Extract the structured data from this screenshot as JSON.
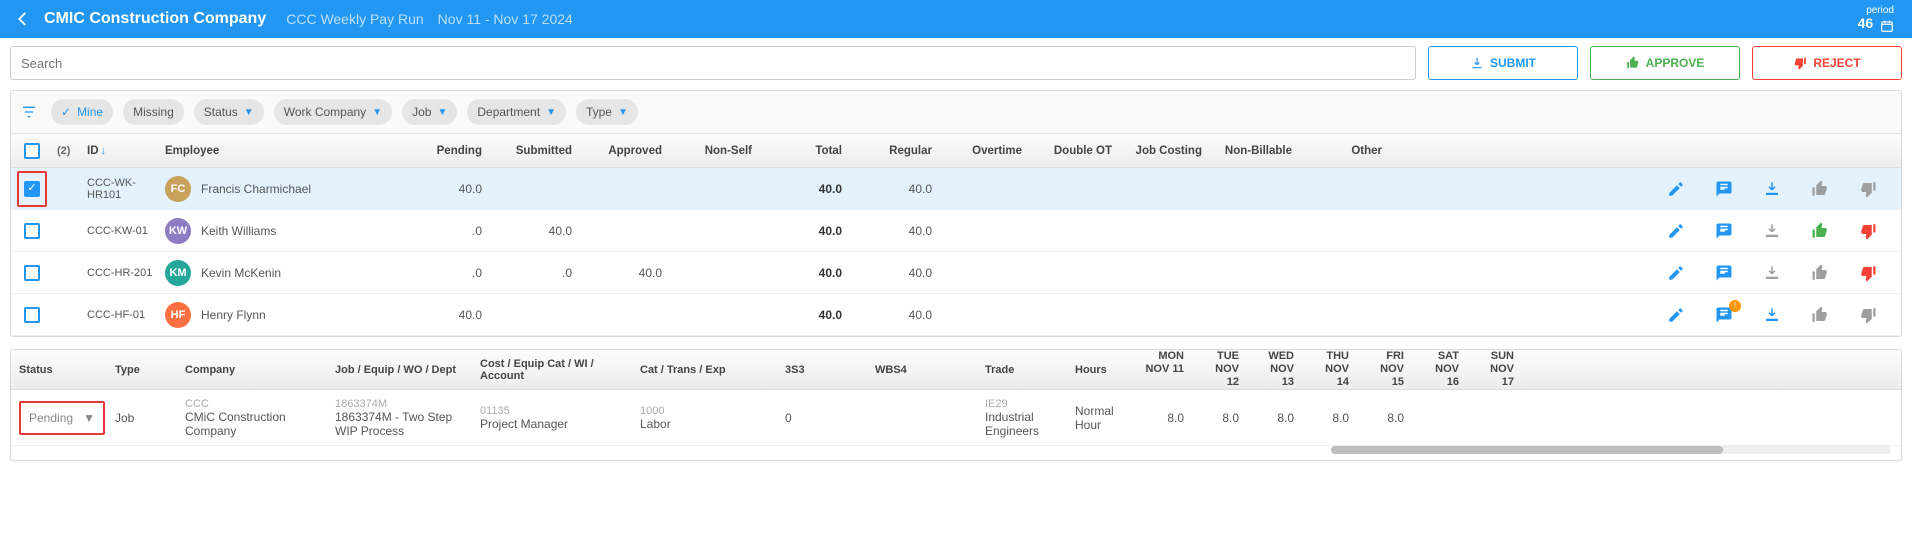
{
  "header": {
    "company": "CMIC Construction Company",
    "run_name": "CCC Weekly Pay Run",
    "date_range": "Nov 11 - Nov 17   2024",
    "period_label": "period",
    "period_number": "46"
  },
  "search": {
    "placeholder": "Search"
  },
  "buttons": {
    "submit": "SUBMIT",
    "approve": "APPROVE",
    "reject": "REJECT"
  },
  "filters": {
    "mine": "Mine",
    "chips": [
      "Missing",
      "Status",
      "Work Company",
      "Job",
      "Department",
      "Type"
    ]
  },
  "columns": {
    "count": "(2)",
    "id": "ID",
    "employee": "Employee",
    "pending": "Pending",
    "submitted": "Submitted",
    "approved": "Approved",
    "nonself": "Non-Self",
    "total": "Total",
    "regular": "Regular",
    "overtime": "Overtime",
    "doubleot": "Double OT",
    "jobcosting": "Job Costing",
    "nonbillable": "Non-Billable",
    "other": "Other"
  },
  "rows": [
    {
      "selected": true,
      "id": "CCC-WK-HR101",
      "name": "Francis Charmichael",
      "initials": "FC",
      "avatar_color": "#c8a15a",
      "pending": "40.0",
      "submitted": "",
      "approved": "",
      "total": "40.0",
      "regular": "40.0",
      "dl_active": true,
      "thumb_up": "gray",
      "thumb_down": "gray",
      "badge": false
    },
    {
      "selected": false,
      "id": "CCC-KW-01",
      "name": "Keith Williams",
      "initials": "KW",
      "avatar_color": "#8e7cc3",
      "pending": ".0",
      "submitted": "40.0",
      "approved": "",
      "total": "40.0",
      "regular": "40.0",
      "dl_active": false,
      "thumb_up": "green",
      "thumb_down": "red",
      "badge": false
    },
    {
      "selected": false,
      "id": "CCC-HR-201",
      "name": "Kevin McKenin",
      "initials": "KM",
      "avatar_color": "#26a69a",
      "pending": ".0",
      "submitted": ".0",
      "approved": "40.0",
      "total": "40.0",
      "regular": "40.0",
      "dl_active": false,
      "thumb_up": "gray",
      "thumb_down": "red",
      "badge": false
    },
    {
      "selected": false,
      "id": "CCC-HF-01",
      "name": "Henry Flynn",
      "initials": "HF",
      "avatar_color": "#ff7043",
      "pending": "40.0",
      "submitted": "",
      "approved": "",
      "total": "40.0",
      "regular": "40.0",
      "dl_active": true,
      "thumb_up": "gray",
      "thumb_down": "gray",
      "badge": true
    }
  ],
  "detail_columns": {
    "status": "Status",
    "type": "Type",
    "company": "Company",
    "job": "Job / Equip / WO / Dept",
    "cost": "Cost / Equip Cat / WI / Account",
    "cat": "Cat / Trans / Exp",
    "s3": "3S3",
    "wbs4": "WBS4",
    "trade": "Trade",
    "hours": "Hours"
  },
  "days": [
    {
      "dow": "MON",
      "date": "NOV 11"
    },
    {
      "dow": "TUE",
      "date": "NOV 12"
    },
    {
      "dow": "WED",
      "date": "NOV 13"
    },
    {
      "dow": "THU",
      "date": "NOV 14"
    },
    {
      "dow": "FRI",
      "date": "NOV 15"
    },
    {
      "dow": "SAT",
      "date": "NOV 16"
    },
    {
      "dow": "SUN",
      "date": "NOV 17"
    }
  ],
  "detail": {
    "status": "Pending",
    "type": "Job",
    "company_code": "CCC",
    "company_name": "CMiC Construction Company",
    "job_code": "1863374M",
    "job_name": "1863374M - Two Step WIP Process",
    "cost_code": "01135",
    "cost_name": "Project Manager",
    "cat_code": "1000",
    "cat_name": "Labor",
    "s3": "0",
    "trade_code": "IE29",
    "trade_name": "Industrial Engineers",
    "hours_type": "Normal Hour",
    "day_values": [
      "8.0",
      "8.0",
      "8.0",
      "8.0",
      "8.0",
      "",
      ""
    ]
  }
}
